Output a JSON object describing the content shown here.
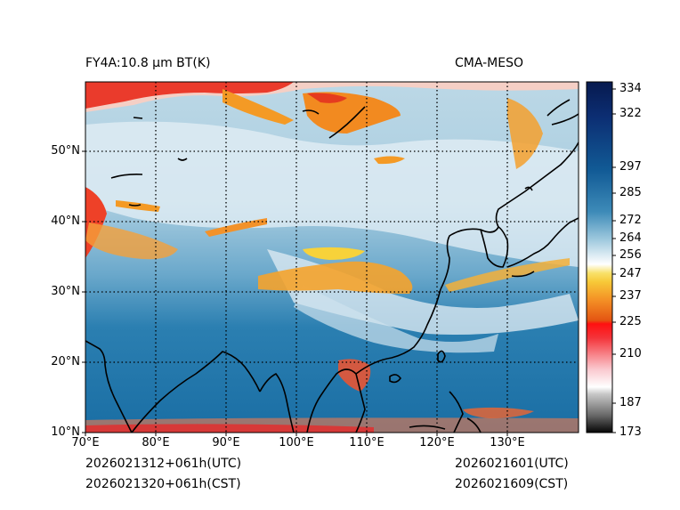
{
  "header": {
    "title_left": "FY4A:10.8 µm BT(K)",
    "title_right": "CMA-MESO"
  },
  "footer": {
    "init_utc": "2026021312+061h(UTC)",
    "init_cst": "2026021320+061h(CST)",
    "valid_utc": "2026021601(UTC)",
    "valid_cst": "2026021609(CST)"
  },
  "map": {
    "lat_labels": [
      "10°N",
      "20°N",
      "30°N",
      "40°N",
      "50°N"
    ],
    "lon_labels": [
      "70°E",
      "80°E",
      "90°E",
      "100°E",
      "110°E",
      "120°E",
      "130°E"
    ],
    "lon_range": [
      70,
      140
    ],
    "lat_range": [
      10,
      60
    ]
  },
  "colorbar": {
    "ticks": [
      "334",
      "322",
      "297",
      "285",
      "272",
      "264",
      "256",
      "247",
      "237",
      "225",
      "210",
      "187",
      "173"
    ],
    "range": [
      173,
      336
    ]
  },
  "colors": {
    "ocean_blue": "#1a74a9",
    "cloud_white": "#e9f1f5",
    "cold_red": "#e8211a",
    "orange": "#f59a23",
    "yellow": "#f7d23a",
    "navy": "#0a1c54"
  }
}
